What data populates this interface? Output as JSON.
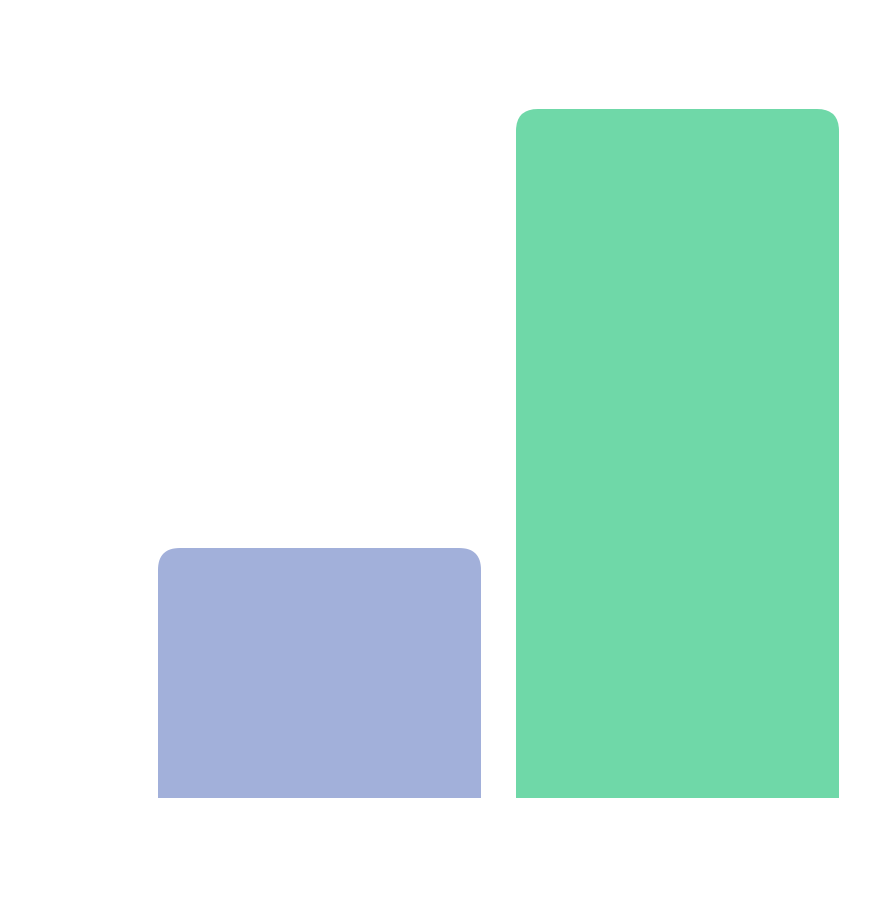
{
  "chart_data": {
    "type": "bar",
    "values": [
      250,
      689
    ],
    "colors": [
      "#a2b0da",
      "#6fd8a8"
    ]
  }
}
